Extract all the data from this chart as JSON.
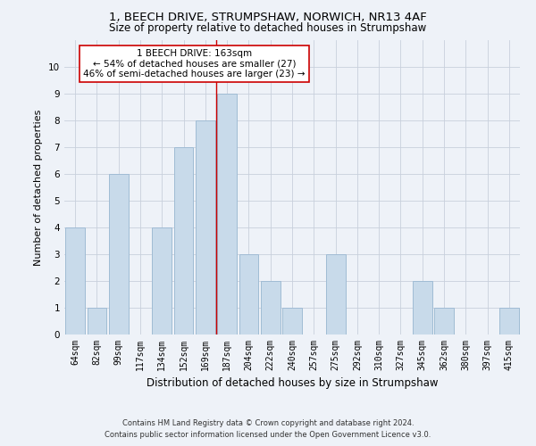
{
  "title": "1, BEECH DRIVE, STRUMPSHAW, NORWICH, NR13 4AF",
  "subtitle": "Size of property relative to detached houses in Strumpshaw",
  "xlabel": "Distribution of detached houses by size in Strumpshaw",
  "ylabel": "Number of detached properties",
  "categories": [
    "64sqm",
    "82sqm",
    "99sqm",
    "117sqm",
    "134sqm",
    "152sqm",
    "169sqm",
    "187sqm",
    "204sqm",
    "222sqm",
    "240sqm",
    "257sqm",
    "275sqm",
    "292sqm",
    "310sqm",
    "327sqm",
    "345sqm",
    "362sqm",
    "380sqm",
    "397sqm",
    "415sqm"
  ],
  "values": [
    4,
    1,
    6,
    0,
    4,
    7,
    8,
    9,
    3,
    2,
    1,
    0,
    3,
    0,
    0,
    0,
    2,
    1,
    0,
    0,
    1
  ],
  "bar_color": "#c8daea",
  "bar_edge_color": "#a0bcd4",
  "vline_x_index": 6,
  "vline_color": "#cc0000",
  "ylim": [
    0,
    11
  ],
  "yticks": [
    0,
    1,
    2,
    3,
    4,
    5,
    6,
    7,
    8,
    9,
    10
  ],
  "annotation_text": "1 BEECH DRIVE: 163sqm\n← 54% of detached houses are smaller (27)\n46% of semi-detached houses are larger (23) →",
  "annotation_box_color": "#ffffff",
  "annotation_box_edge": "#cc0000",
  "footer_line1": "Contains HM Land Registry data © Crown copyright and database right 2024.",
  "footer_line2": "Contains public sector information licensed under the Open Government Licence v3.0.",
  "background_color": "#eef2f8",
  "grid_color": "#c8d0dc",
  "title_fontsize": 9.5,
  "subtitle_fontsize": 8.5,
  "ylabel_fontsize": 8,
  "xlabel_fontsize": 8.5,
  "tick_fontsize": 7,
  "annotation_fontsize": 7.5,
  "footer_fontsize": 6
}
